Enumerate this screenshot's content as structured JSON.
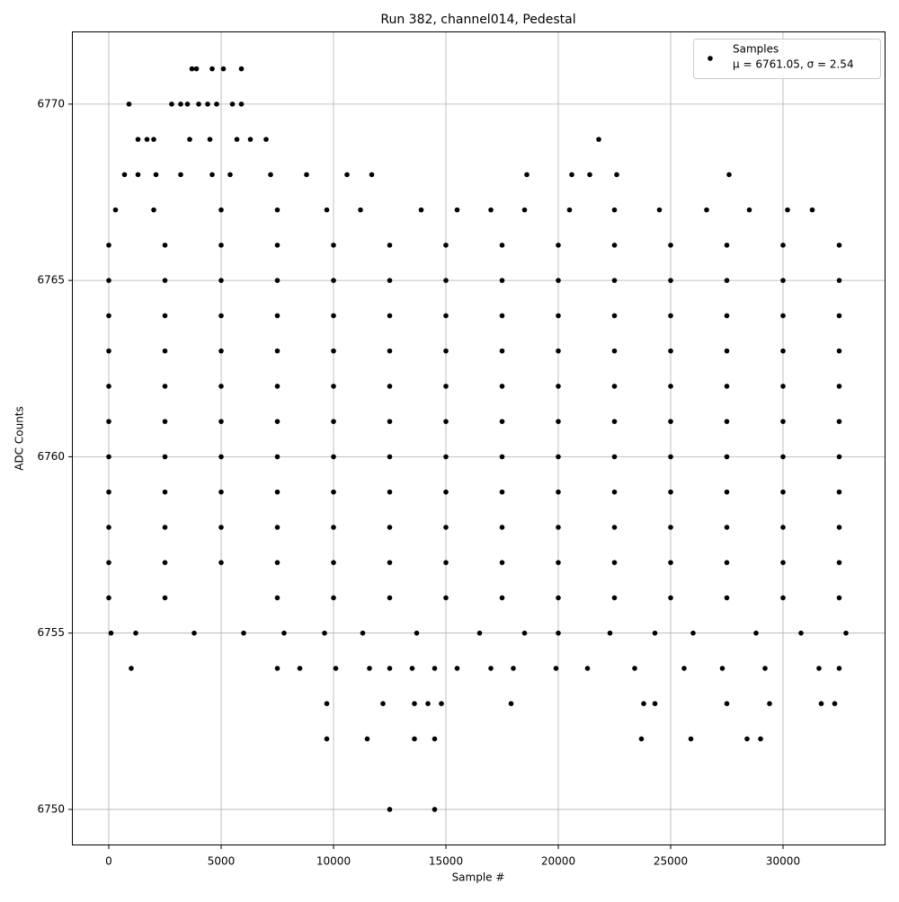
{
  "chart_data": {
    "type": "scatter",
    "title": "Run 382, channel014, Pedestal",
    "x_label": "Sample #",
    "y_label": "ADC Counts",
    "xlim": [
      -1640,
      34560
    ],
    "ylim": [
      6748.98,
      6772.06
    ],
    "xticks": [
      0,
      5000,
      10000,
      15000,
      20000,
      25000,
      30000
    ],
    "yticks": [
      6750,
      6755,
      6760,
      6765,
      6770
    ],
    "grid": true,
    "legend_position": "upper right",
    "annotation": "μ = 6761.05, σ = 2.54",
    "series": [
      {
        "name": "Samples",
        "color": "#000000",
        "x": [
          0,
          2500,
          5000,
          7500,
          10000,
          12500,
          15000,
          17500,
          20000,
          22500,
          25000,
          27500,
          30000,
          32500,
          0,
          2500,
          5000,
          7500,
          10000,
          12500,
          15000,
          17500,
          20000,
          22500,
          25000,
          27500,
          30000,
          32500,
          0,
          2500,
          5000,
          7500,
          10000,
          12500,
          15000,
          17500,
          20000,
          22500,
          25000,
          27500,
          30000,
          32500,
          0,
          2500,
          5000,
          7500,
          10000,
          12500,
          15000,
          17500,
          20000,
          22500,
          25000,
          27500,
          30000,
          32500,
          0,
          2500,
          5000,
          7500,
          10000,
          12500,
          15000,
          17500,
          20000,
          22500,
          25000,
          27500,
          30000,
          32500,
          0,
          2500,
          5000,
          7500,
          10000,
          12500,
          15000,
          17500,
          20000,
          22500,
          25000,
          27500,
          30000,
          32500,
          0,
          2500,
          5000,
          7500,
          10000,
          12500,
          15000,
          17500,
          20000,
          22500,
          25000,
          27500,
          30000,
          32500,
          0,
          2500,
          5000,
          7500,
          10000,
          12500,
          15000,
          17500,
          20000,
          22500,
          25000,
          27500,
          30000,
          32500,
          0,
          2500,
          5000,
          7500,
          10000,
          12500,
          15000,
          17500,
          20000,
          22500,
          25000,
          27500,
          30000,
          32500,
          0,
          2500,
          5000,
          7500,
          10000,
          12500,
          15000,
          17500,
          20000,
          22500,
          25000,
          27500,
          30000,
          32500,
          0,
          2500,
          7500,
          10000,
          12500,
          15000,
          17500,
          20000,
          22500,
          25000,
          27500,
          30000,
          32500,
          3700,
          3900,
          4600,
          5100,
          5900,
          900,
          2800,
          3200,
          3500,
          4000,
          4400,
          4800,
          5500,
          5900,
          1300,
          1700,
          2000,
          3600,
          4500,
          5700,
          6300,
          7000,
          21800,
          700,
          1300,
          2100,
          3200,
          4600,
          5400,
          7200,
          8800,
          10600,
          11700,
          18600,
          20600,
          21400,
          22600,
          27600,
          300,
          2000,
          5000,
          7500,
          9700,
          11200,
          13900,
          15500,
          17000,
          18500,
          20500,
          22500,
          24500,
          26600,
          28500,
          30200,
          31300,
          100,
          1200,
          3800,
          6000,
          7800,
          9600,
          11300,
          13700,
          16500,
          18500,
          20000,
          22300,
          24300,
          26000,
          28800,
          30800,
          32800,
          1000,
          7500,
          8500,
          10100,
          11600,
          12500,
          13500,
          14500,
          15500,
          17000,
          18000,
          19900,
          21300,
          23400,
          25600,
          27300,
          29200,
          31600,
          32500,
          9700,
          12200,
          13600,
          14200,
          14800,
          17900,
          23800,
          24300,
          27500,
          29400,
          31700,
          32300,
          9700,
          11500,
          13600,
          14500,
          23700,
          25900,
          28400,
          29000,
          12500,
          14500
        ],
        "values": [
          6757,
          6757,
          6757,
          6757,
          6757,
          6757,
          6757,
          6757,
          6757,
          6757,
          6757,
          6757,
          6757,
          6757,
          6758,
          6758,
          6758,
          6758,
          6758,
          6758,
          6758,
          6758,
          6758,
          6758,
          6758,
          6758,
          6758,
          6758,
          6759,
          6759,
          6759,
          6759,
          6759,
          6759,
          6759,
          6759,
          6759,
          6759,
          6759,
          6759,
          6759,
          6759,
          6760,
          6760,
          6760,
          6760,
          6760,
          6760,
          6760,
          6760,
          6760,
          6760,
          6760,
          6760,
          6760,
          6760,
          6761,
          6761,
          6761,
          6761,
          6761,
          6761,
          6761,
          6761,
          6761,
          6761,
          6761,
          6761,
          6761,
          6761,
          6762,
          6762,
          6762,
          6762,
          6762,
          6762,
          6762,
          6762,
          6762,
          6762,
          6762,
          6762,
          6762,
          6762,
          6763,
          6763,
          6763,
          6763,
          6763,
          6763,
          6763,
          6763,
          6763,
          6763,
          6763,
          6763,
          6763,
          6763,
          6764,
          6764,
          6764,
          6764,
          6764,
          6764,
          6764,
          6764,
          6764,
          6764,
          6764,
          6764,
          6764,
          6764,
          6765,
          6765,
          6765,
          6765,
          6765,
          6765,
          6765,
          6765,
          6765,
          6765,
          6765,
          6765,
          6765,
          6765,
          6766,
          6766,
          6766,
          6766,
          6766,
          6766,
          6766,
          6766,
          6766,
          6766,
          6766,
          6766,
          6766,
          6766,
          6756,
          6756,
          6756,
          6756,
          6756,
          6756,
          6756,
          6756,
          6756,
          6756,
          6756,
          6756,
          6756,
          6771,
          6771,
          6771,
          6771,
          6771,
          6770,
          6770,
          6770,
          6770,
          6770,
          6770,
          6770,
          6770,
          6770,
          6769,
          6769,
          6769,
          6769,
          6769,
          6769,
          6769,
          6769,
          6769,
          6768,
          6768,
          6768,
          6768,
          6768,
          6768,
          6768,
          6768,
          6768,
          6768,
          6768,
          6768,
          6768,
          6768,
          6768,
          6767,
          6767,
          6767,
          6767,
          6767,
          6767,
          6767,
          6767,
          6767,
          6767,
          6767,
          6767,
          6767,
          6767,
          6767,
          6767,
          6767,
          6755,
          6755,
          6755,
          6755,
          6755,
          6755,
          6755,
          6755,
          6755,
          6755,
          6755,
          6755,
          6755,
          6755,
          6755,
          6755,
          6755,
          6754,
          6754,
          6754,
          6754,
          6754,
          6754,
          6754,
          6754,
          6754,
          6754,
          6754,
          6754,
          6754,
          6754,
          6754,
          6754,
          6754,
          6754,
          6754,
          6753,
          6753,
          6753,
          6753,
          6753,
          6753,
          6753,
          6753,
          6753,
          6753,
          6753,
          6753,
          6752,
          6752,
          6752,
          6752,
          6752,
          6752,
          6752,
          6752,
          6750,
          6750
        ]
      }
    ]
  }
}
